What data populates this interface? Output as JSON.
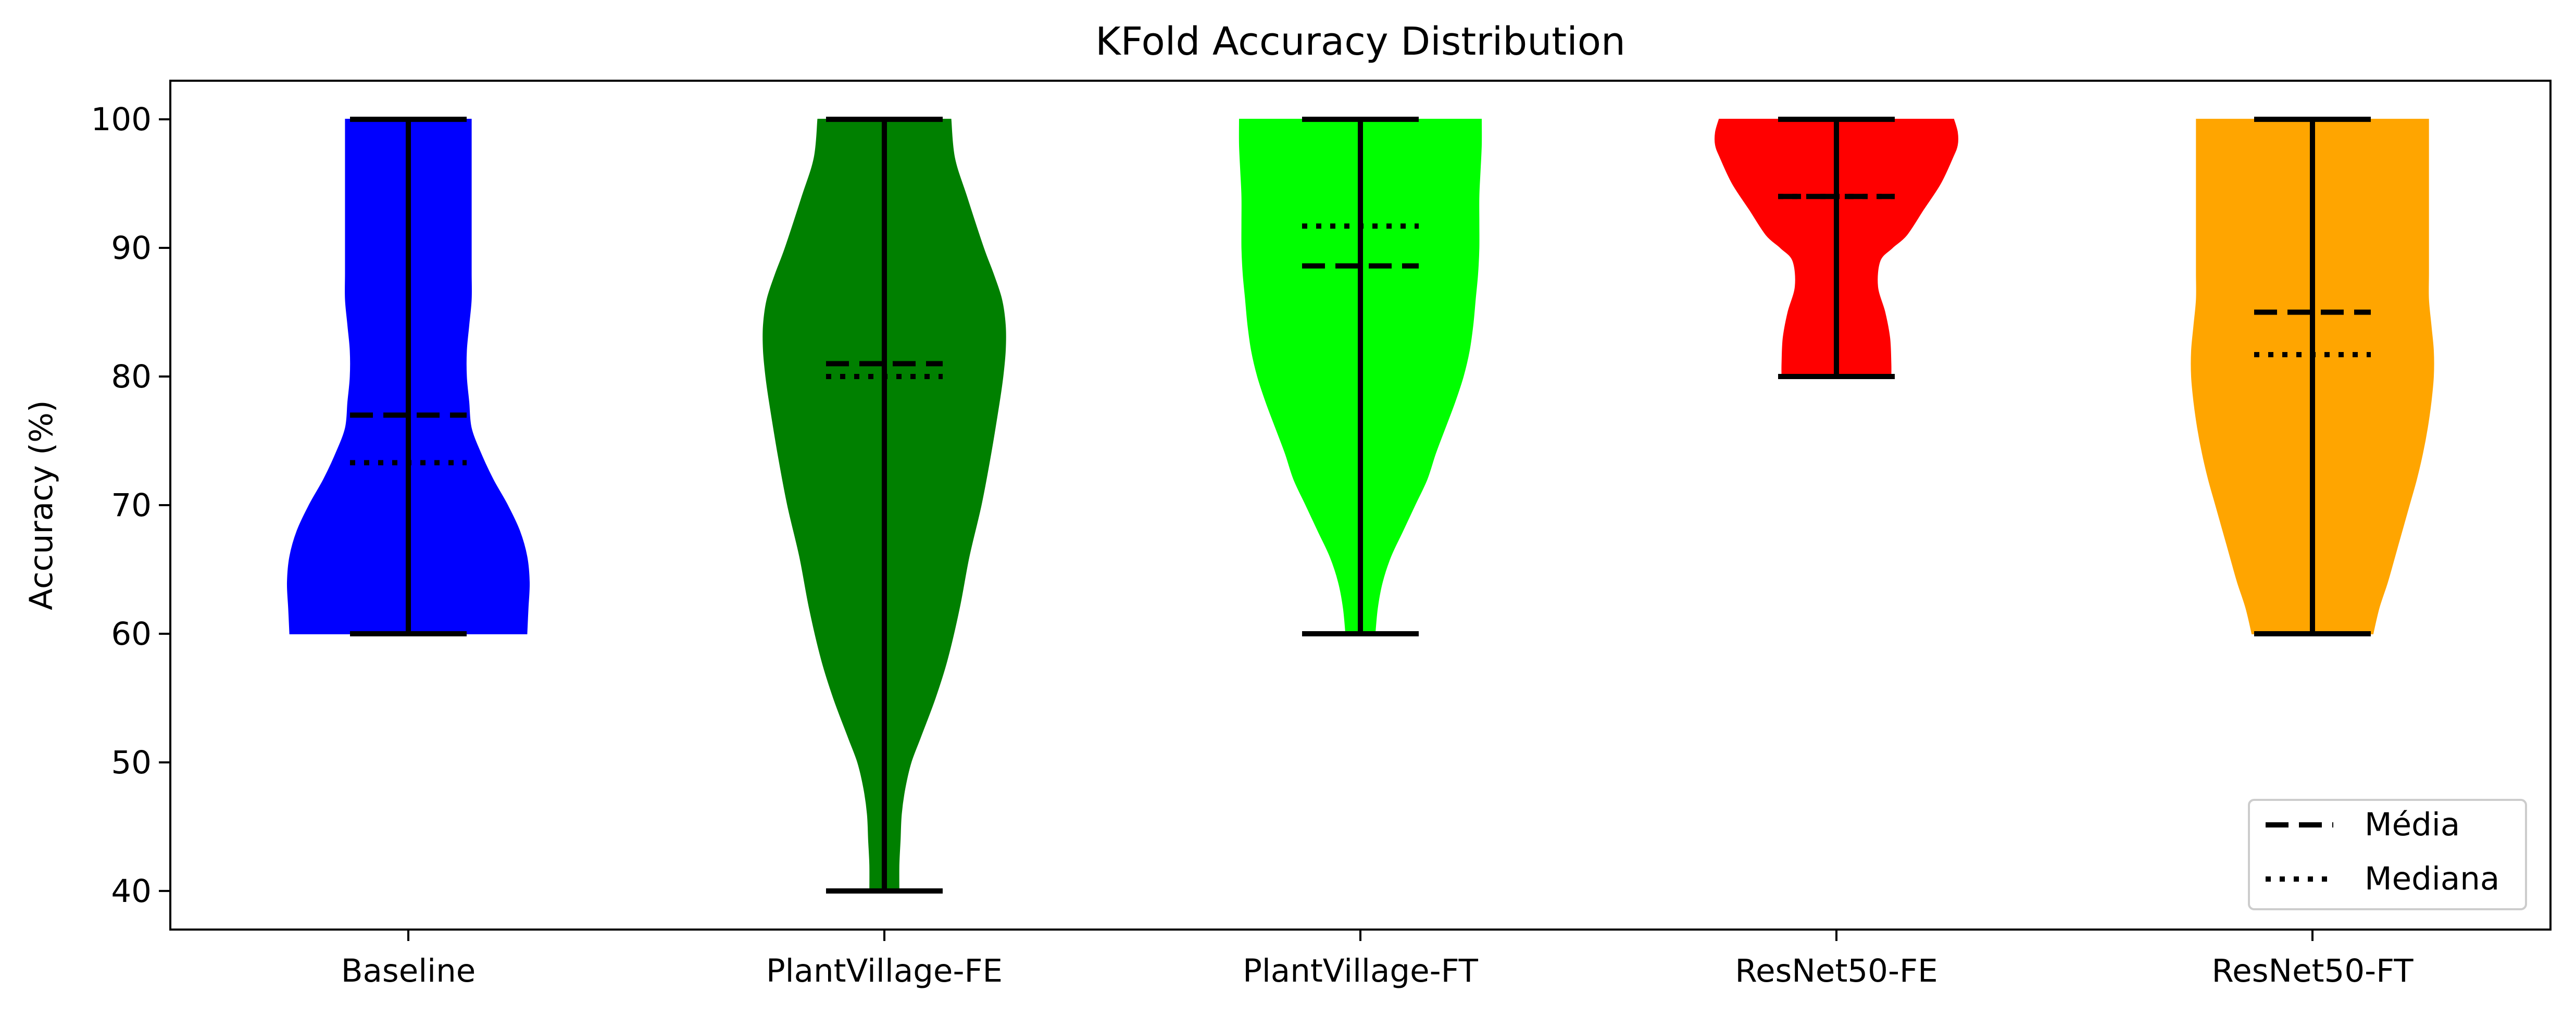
{
  "chart_data": {
    "type": "violin",
    "title": "KFold Accuracy Distribution",
    "xlabel": "",
    "ylabel": "Accuracy (%)",
    "ylim": [
      37,
      103
    ],
    "yticks": [
      40,
      50,
      60,
      70,
      80,
      90,
      100
    ],
    "grid": false,
    "legend_position": "bottom-right",
    "legend": [
      {
        "label": "Média",
        "style": "dashed"
      },
      {
        "label": "Mediana",
        "style": "dotted"
      }
    ],
    "series": [
      {
        "category": "Baseline",
        "color": "#0000ff",
        "min": 60,
        "max": 100,
        "mean": 77,
        "median": 73.3,
        "profile": [
          [
            60,
            0.98
          ],
          [
            62,
            0.99
          ],
          [
            64,
            1.0
          ],
          [
            66,
            0.98
          ],
          [
            68,
            0.92
          ],
          [
            70,
            0.82
          ],
          [
            72,
            0.7
          ],
          [
            74,
            0.6
          ],
          [
            76,
            0.52
          ],
          [
            78,
            0.5
          ],
          [
            80,
            0.48
          ],
          [
            82,
            0.48
          ],
          [
            84,
            0.5
          ],
          [
            86,
            0.52
          ],
          [
            88,
            0.52
          ],
          [
            90,
            0.52
          ],
          [
            92,
            0.52
          ],
          [
            94,
            0.52
          ],
          [
            96,
            0.52
          ],
          [
            98,
            0.52
          ],
          [
            100,
            0.52
          ]
        ]
      },
      {
        "category": "PlantVillage-FE",
        "color": "#008000",
        "min": 40,
        "max": 100,
        "mean": 81,
        "median": 80,
        "profile": [
          [
            40,
            0.12
          ],
          [
            42,
            0.12
          ],
          [
            44,
            0.13
          ],
          [
            46,
            0.14
          ],
          [
            48,
            0.17
          ],
          [
            50,
            0.22
          ],
          [
            52,
            0.3
          ],
          [
            55,
            0.42
          ],
          [
            58,
            0.52
          ],
          [
            62,
            0.62
          ],
          [
            66,
            0.7
          ],
          [
            70,
            0.8
          ],
          [
            74,
            0.88
          ],
          [
            78,
            0.95
          ],
          [
            80,
            0.98
          ],
          [
            82,
            1.0
          ],
          [
            84,
            1.0
          ],
          [
            86,
            0.97
          ],
          [
            88,
            0.9
          ],
          [
            90,
            0.82
          ],
          [
            94,
            0.68
          ],
          [
            97,
            0.58
          ],
          [
            100,
            0.55
          ]
        ]
      },
      {
        "category": "PlantVillage-FT",
        "color": "#00ff00",
        "min": 60,
        "max": 100,
        "mean": 88.6,
        "median": 91.7,
        "profile": [
          [
            60,
            0.12
          ],
          [
            62,
            0.14
          ],
          [
            64,
            0.18
          ],
          [
            66,
            0.25
          ],
          [
            68,
            0.35
          ],
          [
            70,
            0.45
          ],
          [
            72,
            0.55
          ],
          [
            74,
            0.62
          ],
          [
            76,
            0.7
          ],
          [
            78,
            0.78
          ],
          [
            80,
            0.85
          ],
          [
            82,
            0.9
          ],
          [
            84,
            0.93
          ],
          [
            86,
            0.95
          ],
          [
            88,
            0.97
          ],
          [
            90,
            0.98
          ],
          [
            92,
            0.98
          ],
          [
            94,
            0.98
          ],
          [
            96,
            0.99
          ],
          [
            98,
            1.0
          ],
          [
            100,
            1.0
          ]
        ]
      },
      {
        "category": "ResNet50-FE",
        "color": "#ff0000",
        "min": 80,
        "max": 100,
        "mean": 94,
        "median": 94,
        "profile": [
          [
            80,
            0.45
          ],
          [
            81,
            0.45
          ],
          [
            83,
            0.44
          ],
          [
            85,
            0.4
          ],
          [
            87,
            0.34
          ],
          [
            89,
            0.36
          ],
          [
            90,
            0.46
          ],
          [
            91,
            0.58
          ],
          [
            93,
            0.72
          ],
          [
            95,
            0.86
          ],
          [
            97,
            0.96
          ],
          [
            98,
            1.0
          ],
          [
            99,
            1.0
          ],
          [
            100,
            0.97
          ]
        ]
      },
      {
        "category": "ResNet50-FT",
        "color": "#ffa500",
        "min": 60,
        "max": 100,
        "mean": 85,
        "median": 81.7,
        "profile": [
          [
            60,
            0.5
          ],
          [
            62,
            0.55
          ],
          [
            64,
            0.62
          ],
          [
            66,
            0.68
          ],
          [
            68,
            0.74
          ],
          [
            70,
            0.8
          ],
          [
            72,
            0.86
          ],
          [
            74,
            0.91
          ],
          [
            76,
            0.95
          ],
          [
            78,
            0.98
          ],
          [
            80,
            1.0
          ],
          [
            82,
            1.0
          ],
          [
            84,
            0.98
          ],
          [
            86,
            0.96
          ],
          [
            88,
            0.96
          ],
          [
            90,
            0.96
          ],
          [
            92,
            0.96
          ],
          [
            94,
            0.96
          ],
          [
            96,
            0.96
          ],
          [
            98,
            0.96
          ],
          [
            100,
            0.96
          ]
        ]
      }
    ]
  }
}
